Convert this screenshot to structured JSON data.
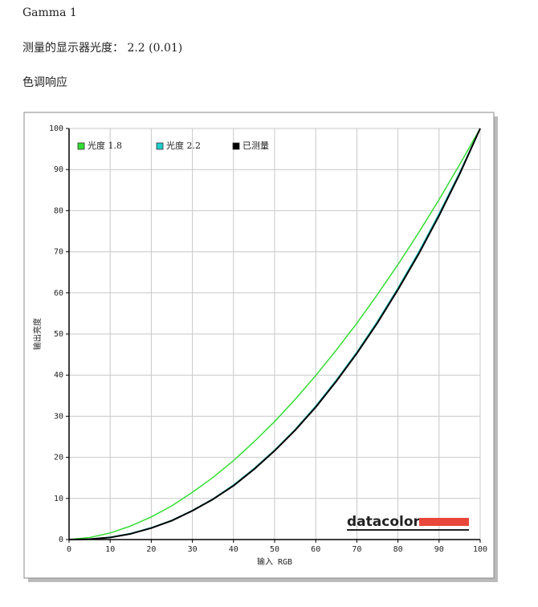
{
  "heading": "Gamma 1",
  "measured_gamma": "测量的显示器光度： 2.2 (0.01)",
  "section": "色调响应",
  "chart_data": {
    "type": "line",
    "xlabel": "输入 RGB",
    "ylabel": "输出亮度",
    "watermark": "datacolor",
    "x": [
      0,
      5,
      10,
      15,
      20,
      25,
      30,
      35,
      40,
      45,
      50,
      55,
      60,
      65,
      70,
      75,
      80,
      85,
      90,
      95,
      100
    ],
    "series": [
      {
        "name": "光度 1.8",
        "color": "#33dd33",
        "values": [
          0,
          0.5,
          1.6,
          3.3,
          5.5,
          8.2,
          11.5,
          15.1,
          19.2,
          23.8,
          28.7,
          34.1,
          39.9,
          46.1,
          52.6,
          59.6,
          66.9,
          74.6,
          82.7,
          91.2,
          100
        ]
      },
      {
        "name": "光度 2.2",
        "color": "#22cccc",
        "values": [
          0,
          0.1,
          0.6,
          1.5,
          2.9,
          4.7,
          7.1,
          9.9,
          13.3,
          17.3,
          21.8,
          26.8,
          32.5,
          38.8,
          45.6,
          53.1,
          61.2,
          69.9,
          79.3,
          89.3,
          100
        ]
      },
      {
        "name": "已测量",
        "color": "#000000",
        "values": [
          0,
          0.1,
          0.5,
          1.4,
          2.8,
          4.6,
          7.0,
          9.8,
          13.1,
          17.1,
          21.6,
          26.6,
          32.2,
          38.5,
          45.3,
          52.7,
          60.8,
          69.4,
          78.8,
          88.9,
          100
        ]
      }
    ],
    "xlim": [
      0,
      100
    ],
    "ylim": [
      0,
      100
    ],
    "xticks": [
      0,
      10,
      20,
      30,
      40,
      50,
      60,
      70,
      80,
      90,
      100
    ],
    "yticks": [
      0,
      10,
      20,
      30,
      40,
      50,
      60,
      70,
      80,
      90,
      100
    ],
    "grid": true,
    "legend": "top-left"
  }
}
